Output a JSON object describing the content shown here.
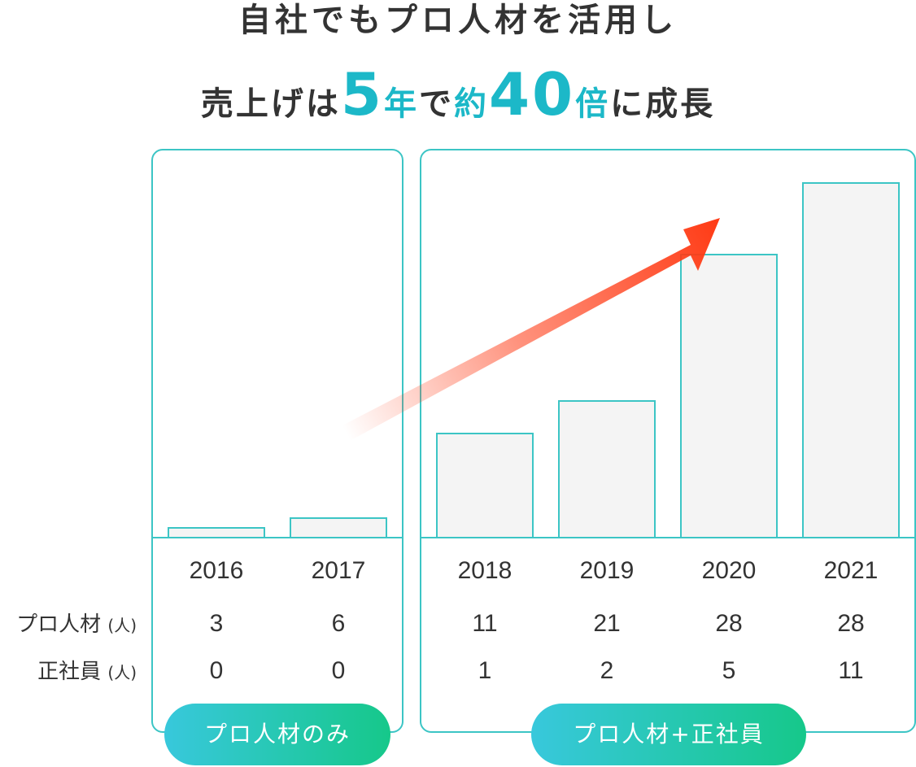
{
  "headline": {
    "line1": "自社でもプロ人材を活用し",
    "line2": {
      "p1": "売上げは",
      "n1": "5",
      "p2": "年",
      "p3": "で",
      "p4": "約",
      "n2": "40",
      "p5": "倍",
      "p6": "に成長"
    }
  },
  "colors": {
    "accent": "#1cb8c8",
    "frame": "#3cc5c5",
    "bar_fill": "#f4f4f4",
    "arrow": "#ff3a14",
    "pill_start": "#38c8dc",
    "pill_end": "#16c88a"
  },
  "groups": [
    {
      "label": "プロ人材のみ"
    },
    {
      "label": "プロ人材+正社員"
    }
  ],
  "rows": [
    {
      "label": "プロ人材",
      "unit": "(人)"
    },
    {
      "label": "正社員",
      "unit": "(人)"
    }
  ],
  "chart_data": {
    "type": "bar",
    "categories": [
      "2016",
      "2017",
      "2018",
      "2019",
      "2020",
      "2021"
    ],
    "values": [
      3,
      6,
      32,
      42,
      87,
      109
    ],
    "value_axis_labels": "none",
    "trend_arrow": "up",
    "table": {
      "pro": [
        "3",
        "6",
        "11",
        "21",
        "28",
        "28"
      ],
      "staff": [
        "0",
        "0",
        "1",
        "2",
        "5",
        "11"
      ]
    }
  }
}
